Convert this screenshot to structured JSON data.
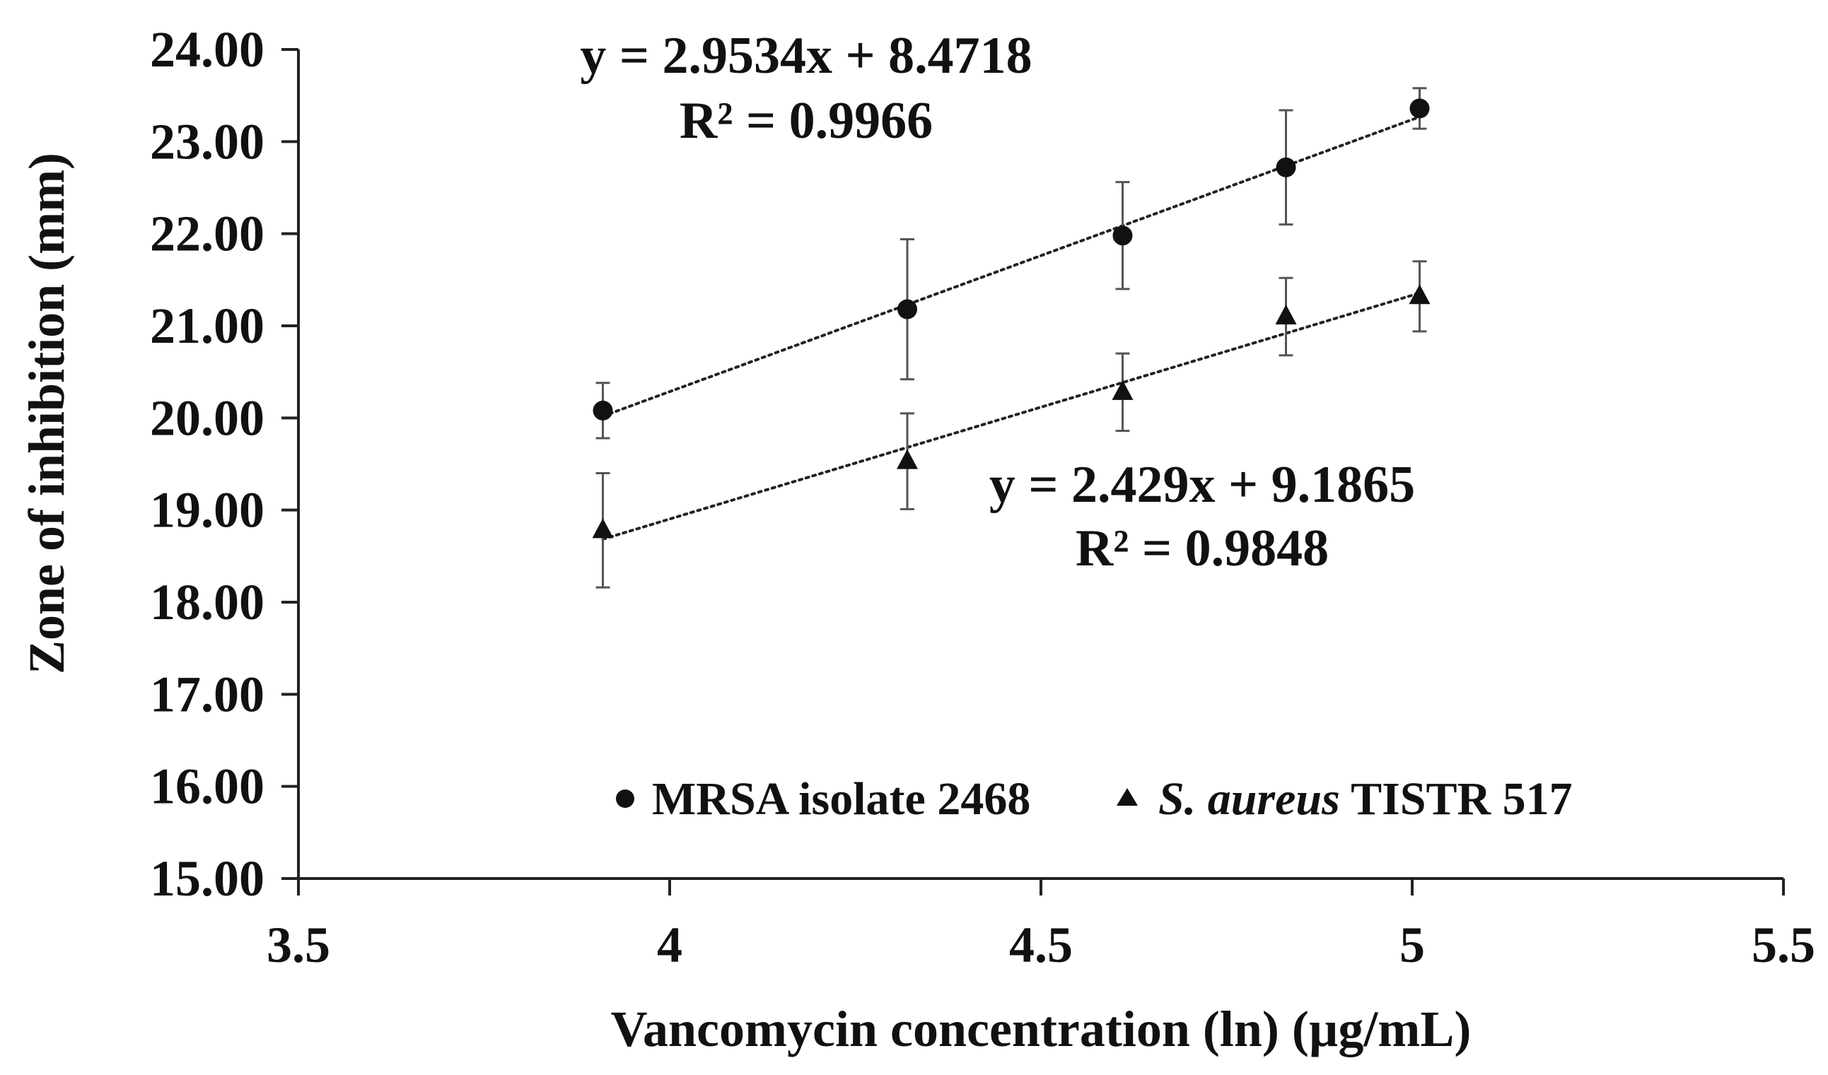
{
  "chart_data": {
    "type": "scatter",
    "xlabel": "Vancomycin concentration (ln) (µg/mL)",
    "ylabel": "Zone of inhibition (mm)",
    "xlim": [
      3.5,
      5.5
    ],
    "ylim": [
      15.0,
      24.0
    ],
    "x_ticks": [
      "3.5",
      "4",
      "4.5",
      "5",
      "5.5"
    ],
    "y_ticks": [
      "15.00",
      "16.00",
      "17.00",
      "18.00",
      "19.00",
      "20.00",
      "21.00",
      "22.00",
      "23.00",
      "24.00"
    ],
    "grid": false,
    "legend_position": "bottom-center",
    "series": [
      {
        "name": "MRSA isolate 2468",
        "marker": "circle",
        "x": [
          3.91,
          4.32,
          4.61,
          4.83,
          5.01
        ],
        "y": [
          20.08,
          21.18,
          21.98,
          22.72,
          23.36
        ],
        "error": [
          0.3,
          0.76,
          0.58,
          0.62,
          0.22
        ],
        "trendline": {
          "slope": 2.9534,
          "intercept": 8.4718,
          "equation": "y = 2.9534x + 8.4718",
          "r2": "R² = 0.9966"
        }
      },
      {
        "name_italic": "S. aureus",
        "name_rest": " TISTR 517",
        "marker": "triangle",
        "x": [
          3.91,
          4.32,
          4.61,
          4.83,
          5.01
        ],
        "y": [
          18.78,
          19.53,
          20.28,
          21.1,
          21.32
        ],
        "error": [
          0.62,
          0.52,
          0.42,
          0.42,
          0.38
        ],
        "trendline": {
          "slope": 2.429,
          "intercept": 9.1865,
          "equation": "y = 2.429x + 9.1865",
          "r2": "R² = 0.9848"
        }
      }
    ]
  }
}
